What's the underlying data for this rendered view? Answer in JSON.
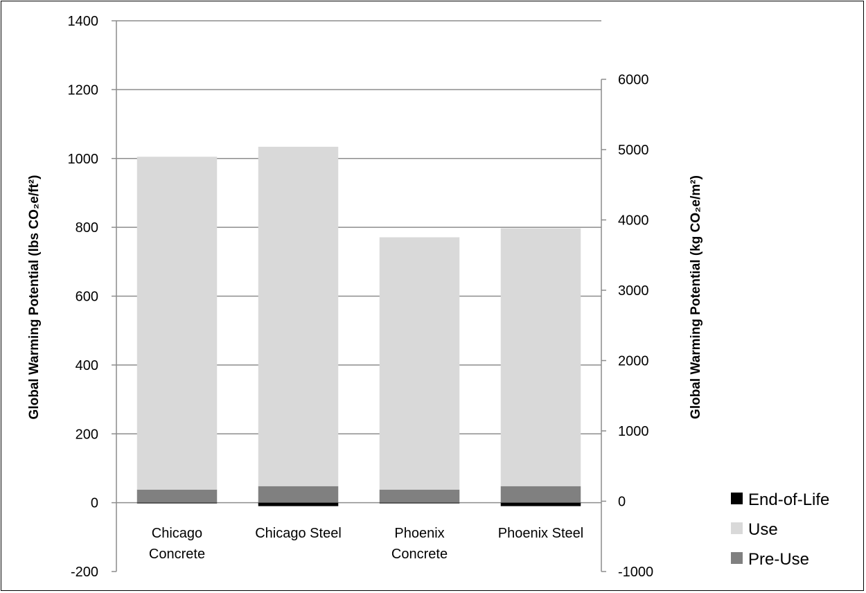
{
  "chart_data": {
    "type": "bar",
    "stacked": true,
    "categories": [
      [
        "Chicago",
        "Concrete"
      ],
      [
        "Chicago Steel"
      ],
      [
        "Phoenix",
        "Concrete"
      ],
      [
        "Phoenix Steel"
      ]
    ],
    "series": [
      {
        "name": "Pre-Use",
        "color": "#808080",
        "values": [
          38,
          48,
          38,
          48
        ]
      },
      {
        "name": "Use",
        "color": "#d9d9d9",
        "values": [
          967,
          986,
          733,
          749
        ]
      },
      {
        "name": "End-of-Life",
        "color": "#000000",
        "values": [
          -2,
          -10,
          -2,
          -10
        ]
      }
    ],
    "legend_order": [
      "End-of-Life",
      "Use",
      "Pre-Use"
    ],
    "legend_position": "bottom-right",
    "y_left": {
      "min": -200,
      "max": 1400,
      "ticks": [
        -200,
        0,
        200,
        400,
        600,
        800,
        1000,
        1200,
        1400
      ]
    },
    "y_right": {
      "min": -1000,
      "max": 6832,
      "ticks": [
        -1000,
        0,
        1000,
        2000,
        3000,
        4000,
        5000,
        6000
      ]
    },
    "ylabel_left": "Global Warming Potential (lbs CO₂e/ft²)",
    "ylabel_right": "Global Warming Potential (kg CO₂e/m²)",
    "grid": true
  }
}
